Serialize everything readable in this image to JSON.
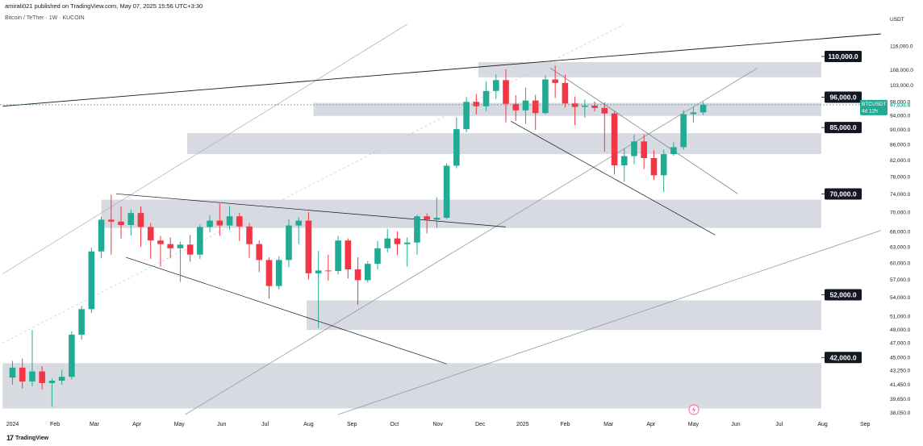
{
  "header": {
    "published": "amirali021 published on TradingView.com, May 07, 2025 15:56 UTC+3:30",
    "symbol_info": "Bitcoin / TeTher · 1W · KUCOIN",
    "currency": "USDT"
  },
  "brand": {
    "mark": "17",
    "name": "TradingView"
  },
  "chart_data": {
    "type": "candlestick",
    "symbol": "BTCUSDT",
    "interval": "1W",
    "exchange": "KUCOIN",
    "y_scale": "log",
    "ylim": [
      37800,
      124000
    ],
    "colors": {
      "up": "#22ab94",
      "down": "#f23645",
      "zone": "#d1d4dc",
      "line": "#131722"
    },
    "price_ticks": [
      "116,000.0",
      "108,000.0",
      "103,000.0",
      "98,000.0",
      "94,000.0",
      "90,000.0",
      "86,000.0",
      "82,000.0",
      "78,000.0",
      "74,000.0",
      "70,000.0",
      "66,000.0",
      "63,000.0",
      "60,000.0",
      "57,000.0",
      "54,000.0",
      "51,000.0",
      "49,000.0",
      "47,000.0",
      "45,000.0",
      "43,250.0",
      "41,450.0",
      "39,650.0",
      "38,050.0"
    ],
    "time_labels": [
      "2024",
      "Feb",
      "Mar",
      "Apr",
      "May",
      "Jun",
      "Jul",
      "Aug",
      "Sep",
      "Oct",
      "Nov",
      "Dec",
      "2025",
      "Feb",
      "Mar",
      "Apr",
      "May",
      "Jun",
      "Jul",
      "Aug",
      "Sep"
    ],
    "time_label_index": [
      0,
      4.3,
      8.3,
      12.6,
      16.9,
      21.2,
      25.6,
      30,
      34.4,
      38.7,
      43.1,
      47.4,
      51.7,
      56,
      60.4,
      64.7,
      69,
      73.3,
      77.7,
      82.1,
      86.4
    ],
    "last_price": {
      "symbol": "BTCUSDT",
      "value": "97,035.8",
      "countdown": "4d 12h"
    },
    "zones": [
      {
        "label": "110,000.0",
        "low": 105500,
        "high": 110500,
        "start": 47.2
      },
      {
        "label": "96,000.0",
        "low": 93800,
        "high": 97600,
        "start": 30.5
      },
      {
        "label": "85,000.0",
        "low": 83500,
        "high": 89000,
        "start": 17.7
      },
      {
        "label": "70,000.0",
        "low": 66700,
        "high": 72700,
        "start": 9.0
      },
      {
        "label": "52,000.0",
        "low": 48900,
        "high": 53500,
        "start": 29.8
      },
      {
        "label": "42,000.0",
        "low": 38500,
        "high": 44200,
        "start": -1.0
      }
    ],
    "candles": [
      [
        0,
        42300,
        43600,
        41400,
        44500
      ],
      [
        1,
        43600,
        41800,
        40900,
        44800
      ],
      [
        2,
        41800,
        43100,
        41200,
        48900
      ],
      [
        3,
        43100,
        41600,
        40800,
        43800
      ],
      [
        4,
        41600,
        41900,
        38700,
        42200
      ],
      [
        5,
        41900,
        42400,
        41400,
        43300
      ],
      [
        6,
        42400,
        48200,
        42100,
        48700
      ],
      [
        7,
        48200,
        52100,
        47500,
        52600
      ],
      [
        8,
        52100,
        62100,
        51500,
        62800
      ],
      [
        9,
        62100,
        68400,
        60800,
        69000
      ],
      [
        10,
        68400,
        68000,
        61500,
        73800
      ],
      [
        11,
        68000,
        67300,
        64600,
        71200
      ],
      [
        12,
        67300,
        69800,
        65200,
        70600
      ],
      [
        13,
        69800,
        66900,
        63000,
        71200
      ],
      [
        14,
        66900,
        64200,
        60700,
        67700
      ],
      [
        15,
        64200,
        63500,
        59300,
        65100
      ],
      [
        16,
        63500,
        62700,
        60800,
        64800
      ],
      [
        17,
        62700,
        63400,
        56600,
        64000
      ],
      [
        18,
        63400,
        61500,
        60200,
        65300
      ],
      [
        19,
        61500,
        66900,
        60700,
        67400
      ],
      [
        20,
        66900,
        68200,
        65800,
        69300
      ],
      [
        21,
        68200,
        67200,
        65100,
        71800
      ],
      [
        22,
        67200,
        69100,
        66300,
        71300
      ],
      [
        23,
        69100,
        67000,
        64100,
        69800
      ],
      [
        24,
        67000,
        63500,
        60900,
        67700
      ],
      [
        25,
        63500,
        60500,
        58300,
        64200
      ],
      [
        26,
        60500,
        55900,
        53800,
        61000
      ],
      [
        27,
        55900,
        60500,
        55300,
        61200
      ],
      [
        28,
        60500,
        67200,
        59200,
        68500
      ],
      [
        29,
        67200,
        68200,
        63500,
        68900
      ],
      [
        30,
        68200,
        58100,
        57000,
        70000
      ],
      [
        31,
        58100,
        58600,
        49200,
        62200
      ],
      [
        32,
        58600,
        58500,
        56800,
        61500
      ],
      [
        33,
        58500,
        64200,
        57900,
        65100
      ],
      [
        34,
        64200,
        58800,
        57200,
        64600
      ],
      [
        35,
        58800,
        56900,
        52800,
        61000
      ],
      [
        36,
        56900,
        59800,
        56500,
        60300
      ],
      [
        37,
        59800,
        62700,
        58800,
        64100
      ],
      [
        38,
        62700,
        64600,
        61900,
        66500
      ],
      [
        39,
        64600,
        63500,
        61400,
        66000
      ],
      [
        40,
        63500,
        63800,
        59300,
        64800
      ],
      [
        41,
        63800,
        69100,
        61500,
        69400
      ],
      [
        42,
        69100,
        68400,
        65600,
        69700
      ],
      [
        43,
        68400,
        68800,
        66700,
        73200
      ],
      [
        44,
        68800,
        80600,
        68500,
        81200
      ],
      [
        45,
        80600,
        90100,
        80000,
        93400
      ],
      [
        46,
        90100,
        97900,
        89300,
        99400
      ],
      [
        47,
        97900,
        96600,
        94200,
        100300
      ],
      [
        48,
        96600,
        101200,
        95200,
        104100
      ],
      [
        49,
        101200,
        104600,
        98800,
        106400
      ],
      [
        50,
        104600,
        97300,
        92000,
        108100
      ],
      [
        51,
        97300,
        95400,
        92400,
        99900
      ],
      [
        52,
        95400,
        98300,
        91500,
        102200
      ],
      [
        53,
        98300,
        94600,
        89900,
        100000
      ],
      [
        54,
        94600,
        104800,
        94300,
        106100
      ],
      [
        55,
        104800,
        103700,
        99100,
        109300
      ],
      [
        56,
        103700,
        97400,
        96200,
        106400
      ],
      [
        57,
        97400,
        96400,
        91200,
        99500
      ],
      [
        58,
        96400,
        96800,
        93300,
        98600
      ],
      [
        59,
        96800,
        96100,
        95100,
        98000
      ],
      [
        60,
        96100,
        94500,
        84100,
        97700
      ],
      [
        61,
        94500,
        80700,
        78500,
        95000
      ],
      [
        62,
        80700,
        83000,
        76800,
        85000
      ],
      [
        63,
        83000,
        86800,
        81000,
        88600
      ],
      [
        64,
        86800,
        82500,
        79800,
        88700
      ],
      [
        65,
        82500,
        78300,
        77200,
        84500
      ],
      [
        66,
        78300,
        83500,
        74400,
        84600
      ],
      [
        67,
        83500,
        85300,
        83100,
        86600
      ],
      [
        68,
        85300,
        94300,
        84600,
        95400
      ],
      [
        69,
        94300,
        94800,
        91900,
        96400
      ],
      [
        70,
        94800,
        97000,
        94000,
        97900
      ]
    ]
  }
}
